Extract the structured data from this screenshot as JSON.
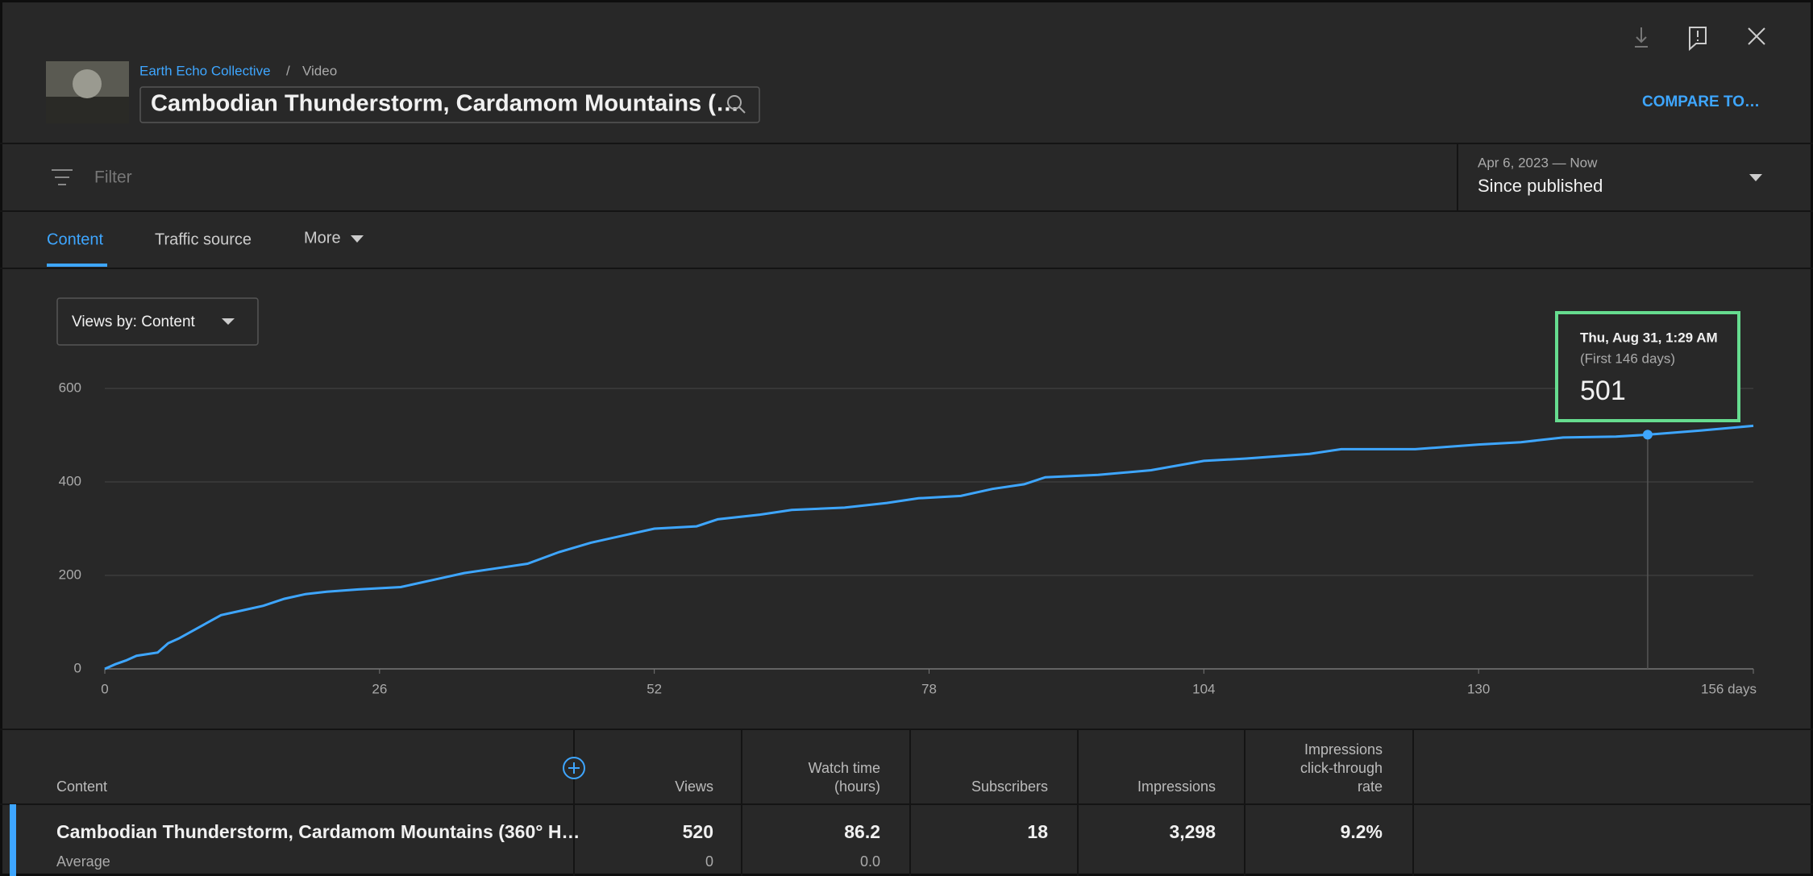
{
  "header": {
    "channel": "Earth Echo Collective",
    "separator": "/",
    "kind": "Video",
    "title": "Cambodian Thunderstorm, Cardamom Mountains (…",
    "compare": "COMPARE TO…"
  },
  "filter": {
    "label": "Filter",
    "date_range": "Apr 6, 2023 — Now",
    "period": "Since published"
  },
  "tabs": [
    "Content",
    "Traffic source",
    "More"
  ],
  "chart_data": {
    "type": "line",
    "dropdown": "Views by: Content",
    "color": "#3ea6ff",
    "grid": true,
    "x": [
      0,
      1,
      2,
      3,
      5,
      6,
      7,
      9,
      11,
      13,
      15,
      17,
      19,
      21,
      24,
      28,
      31,
      34,
      37,
      40,
      43,
      46,
      49,
      52,
      56,
      58,
      62,
      65,
      70,
      74,
      77,
      81,
      84,
      87,
      89,
      94,
      99,
      104,
      108,
      114,
      117,
      124,
      130,
      134,
      138,
      143,
      146,
      151,
      156
    ],
    "values": [
      0,
      10,
      18,
      28,
      35,
      55,
      65,
      90,
      115,
      125,
      135,
      150,
      160,
      165,
      170,
      175,
      190,
      205,
      215,
      225,
      250,
      270,
      285,
      300,
      305,
      320,
      330,
      340,
      345,
      355,
      365,
      370,
      385,
      395,
      410,
      415,
      425,
      445,
      450,
      460,
      470,
      470,
      480,
      485,
      495,
      497,
      501,
      510,
      520
    ],
    "xlim": [
      0,
      156
    ],
    "xticks": [
      0,
      26,
      52,
      78,
      104,
      130,
      {
        "value": 156,
        "label": "156 days"
      }
    ],
    "ylim": [
      0,
      600
    ],
    "yticks": [
      0,
      200,
      400,
      600
    ],
    "tooltip": {
      "title": "Thu, Aug 31, 1:29 AM",
      "subtitle": "(First 146 days)",
      "x": 146,
      "value": 501
    }
  },
  "table": {
    "headers": [
      [
        "Content"
      ],
      [
        "Views"
      ],
      [
        "Watch time",
        "(hours)"
      ],
      [
        "Subscribers"
      ],
      [
        "Impressions"
      ],
      [
        "Impressions",
        "click-through",
        "rate"
      ]
    ],
    "rows": [
      [
        "Cambodian Thunderstorm, Cardamom Mountains (360° H…",
        "520",
        "86.2",
        "18",
        "3,298",
        "9.2%"
      ],
      [
        "Average",
        "0",
        "0.0"
      ]
    ]
  }
}
